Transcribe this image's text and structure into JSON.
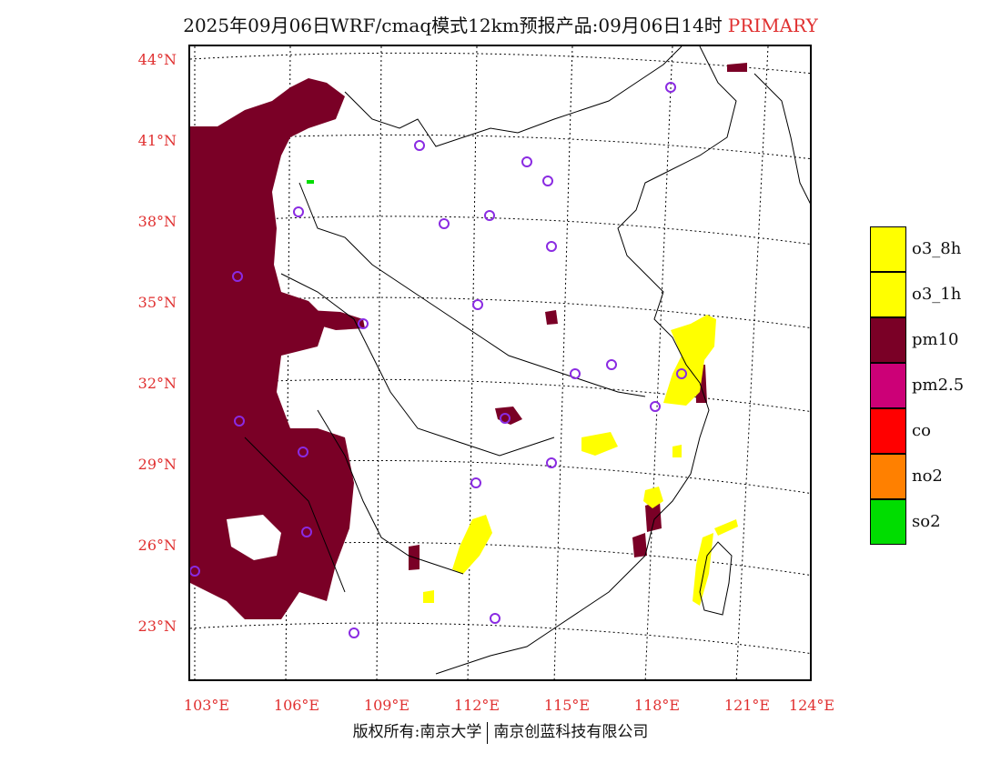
{
  "title": {
    "main": "2025年09月06日WRF/cmaq模式12km预报产品:09月06日14时",
    "tag": "PRIMARY",
    "tag_color": "#e03030"
  },
  "axes": {
    "lat_labels": [
      "44°N",
      "41°N",
      "38°N",
      "35°N",
      "32°N",
      "29°N",
      "26°N",
      "23°N"
    ],
    "lon_labels": [
      "103°E",
      "106°E",
      "109°E",
      "112°E",
      "115°E",
      "118°E",
      "121°E",
      "124°E"
    ],
    "label_color": "#e03030"
  },
  "legend": {
    "items": [
      {
        "label": "o3_8h",
        "color": "#ffff00"
      },
      {
        "label": "o3_1h",
        "color": "#ffff00"
      },
      {
        "label": "pm10",
        "color": "#7a0026"
      },
      {
        "label": "pm2.5",
        "color": "#cc0077"
      },
      {
        "label": "co",
        "color": "#ff0000"
      },
      {
        "label": "no2",
        "color": "#ff8000"
      },
      {
        "label": "so2",
        "color": "#00dd00"
      }
    ]
  },
  "footer": {
    "left": "版权所有:南京大学",
    "right": "南京创蓝科技有限公司"
  }
}
